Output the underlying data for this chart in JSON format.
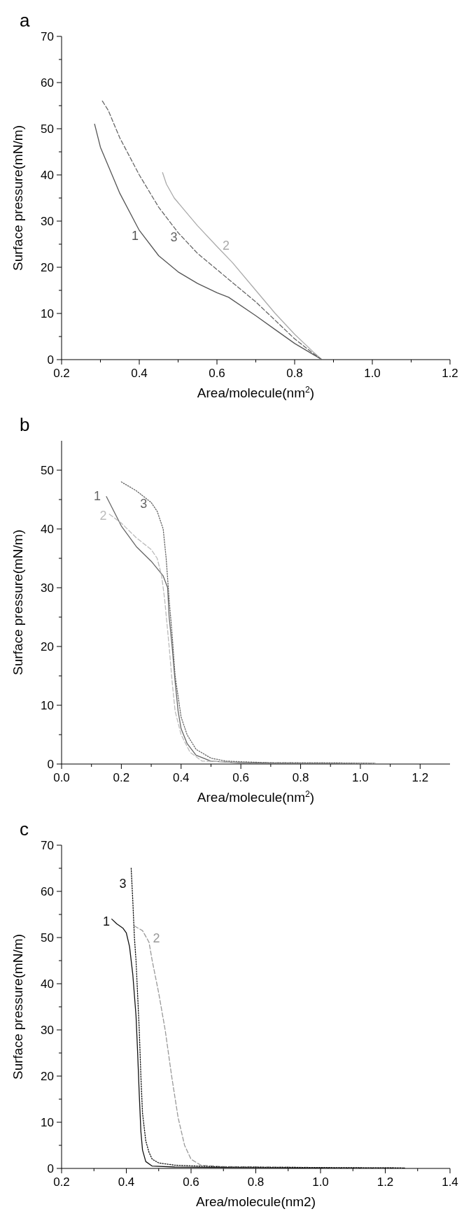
{
  "chart_data": [
    {
      "type": "line",
      "title": "a",
      "xlabel": "Area/molecule(nm$^{2}$)",
      "ylabel": "Surface pressure(mN/m)",
      "xlim": [
        0.2,
        1.2
      ],
      "xticks": [
        0.2,
        {
          "value": 0.3,
          "label": null
        },
        0.4,
        {
          "value": 0.5,
          "label": null
        },
        0.6,
        {
          "value": 0.7,
          "label": null
        },
        0.8,
        {
          "value": 0.9,
          "label": null
        },
        {
          "value": 1,
          "label": "1.0"
        },
        {
          "value": 1.1,
          "label": null
        },
        1.2
      ],
      "ylim": [
        0,
        70
      ],
      "yticks": [
        0,
        {
          "value": 5,
          "label": null
        },
        10,
        {
          "value": 15,
          "label": null
        },
        20,
        {
          "value": 25,
          "label": null
        },
        30,
        {
          "value": 35,
          "label": null
        },
        40,
        {
          "value": 45,
          "label": null
        },
        50,
        {
          "value": 55,
          "label": null
        },
        60,
        {
          "value": 65,
          "label": null
        },
        70
      ],
      "series": [
        {
          "name": "1",
          "color": "#555555",
          "line_style": "solid",
          "x": [
            0.285,
            0.3,
            0.35,
            0.4,
            0.45,
            0.5,
            0.55,
            0.6,
            0.63,
            0.7,
            0.75,
            0.8,
            0.85,
            0.87
          ],
          "values": [
            51,
            46,
            36,
            28,
            22.5,
            19,
            16.5,
            14.5,
            13.5,
            9.5,
            6.5,
            3.5,
            1,
            0
          ]
        },
        {
          "name": "2",
          "color": "#aaaaaa",
          "line_style": "solid",
          "x": [
            0.46,
            0.47,
            0.49,
            0.52,
            0.55,
            0.6,
            0.64,
            0.7,
            0.75,
            0.8,
            0.85,
            0.87
          ],
          "values": [
            40.5,
            38,
            35,
            32,
            29,
            24.5,
            21,
            15,
            10,
            5.5,
            1.5,
            0
          ]
        },
        {
          "name": "3",
          "color": "#666666",
          "line_style": "dashed",
          "x": [
            0.305,
            0.32,
            0.35,
            0.4,
            0.45,
            0.5,
            0.55,
            0.6,
            0.65,
            0.7,
            0.75,
            0.8,
            0.85,
            0.87
          ],
          "values": [
            56,
            54,
            48,
            40,
            33,
            27.5,
            23,
            19.5,
            16,
            12.5,
            8.5,
            4.5,
            1.2,
            0
          ]
        }
      ]
    },
    {
      "type": "line",
      "title": "b",
      "xlabel": "Area/molecule(nm$^{2}$)",
      "ylabel": "Surface pressure(mN/m)",
      "xlim": [
        0,
        1.3
      ],
      "xticks": [
        {
          "value": 0,
          "label": "0.0"
        },
        {
          "value": 0.1,
          "label": null
        },
        0.2,
        {
          "value": 0.3,
          "label": null
        },
        0.4,
        {
          "value": 0.5,
          "label": null
        },
        0.6,
        {
          "value": 0.7,
          "label": null
        },
        0.8,
        {
          "value": 0.9,
          "label": null
        },
        {
          "value": 1,
          "label": "1.0"
        },
        {
          "value": 1.1,
          "label": null
        },
        1.2
      ],
      "ylim": [
        0,
        55
      ],
      "yticks": [
        0,
        {
          "value": 5,
          "label": null
        },
        10,
        {
          "value": 15,
          "label": null
        },
        20,
        {
          "value": 25,
          "label": null
        },
        30,
        {
          "value": 35,
          "label": null
        },
        40,
        {
          "value": 45,
          "label": null
        },
        50
      ],
      "series": [
        {
          "name": "1",
          "color": "#666666",
          "line_style": "solid",
          "x": [
            0.15,
            0.2,
            0.25,
            0.3,
            0.34,
            0.355,
            0.36,
            0.37,
            0.38,
            0.39,
            0.4,
            0.42,
            0.45,
            0.5,
            0.6,
            0.8,
            1.05
          ],
          "values": [
            45.5,
            40.5,
            37,
            34.5,
            32,
            30,
            25,
            20,
            14,
            9,
            6,
            3.5,
            1.5,
            0.5,
            0.2,
            0.1,
            0.1
          ]
        },
        {
          "name": "2",
          "color": "#bbbbbb",
          "line_style": "dashed",
          "x": [
            0.16,
            0.2,
            0.25,
            0.3,
            0.32,
            0.335,
            0.345,
            0.36,
            0.37,
            0.38,
            0.4,
            0.43,
            0.47,
            0.6,
            0.9,
            1.05
          ],
          "values": [
            42.5,
            41,
            38.5,
            36.5,
            35,
            32,
            28,
            20,
            14,
            9,
            5,
            2,
            0.5,
            0.3,
            0.2,
            0.1
          ]
        },
        {
          "name": "3",
          "color": "#666666",
          "line_style": "dotted",
          "x": [
            0.2,
            0.25,
            0.3,
            0.32,
            0.34,
            0.35,
            0.36,
            0.37,
            0.38,
            0.4,
            0.42,
            0.45,
            0.5,
            0.55,
            0.7,
            0.9,
            1.05
          ],
          "values": [
            48,
            46.5,
            44.5,
            43,
            40,
            35,
            28,
            22,
            15,
            8,
            5,
            2.5,
            1,
            0.5,
            0.2,
            0.2,
            0.1
          ]
        }
      ]
    },
    {
      "type": "line",
      "title": "c",
      "xlabel": "Area/molecule(nm2)",
      "ylabel": "Surface pressure(mN/m)",
      "xlim": [
        0.2,
        1.4
      ],
      "xticks": [
        0.2,
        {
          "value": 0.3,
          "label": null
        },
        0.4,
        {
          "value": 0.5,
          "label": null
        },
        0.6,
        {
          "value": 0.7,
          "label": null
        },
        0.8,
        {
          "value": 0.9,
          "label": null
        },
        {
          "value": 1,
          "label": "1.0"
        },
        {
          "value": 1.1,
          "label": null
        },
        1.2,
        {
          "value": 1.3,
          "label": null
        },
        1.4
      ],
      "ylim": [
        0,
        70
      ],
      "yticks": [
        0,
        {
          "value": 5,
          "label": null
        },
        10,
        {
          "value": 15,
          "label": null
        },
        20,
        {
          "value": 25,
          "label": null
        },
        30,
        {
          "value": 35,
          "label": null
        },
        40,
        {
          "value": 45,
          "label": null
        },
        50,
        {
          "value": 55,
          "label": null
        },
        60,
        {
          "value": 65,
          "label": null
        },
        70
      ],
      "series": [
        {
          "name": "1",
          "color": "#111111",
          "line_style": "solid",
          "x": [
            0.355,
            0.37,
            0.39,
            0.4,
            0.41,
            0.42,
            0.43,
            0.435,
            0.44,
            0.445,
            0.45,
            0.46,
            0.48,
            0.55,
            0.7,
            1.0,
            1.26
          ],
          "values": [
            54,
            53,
            52,
            51,
            48,
            42,
            33,
            25,
            16,
            8,
            4,
            1.5,
            0.5,
            0.3,
            0.2,
            0.1,
            0.1
          ]
        },
        {
          "name": "2",
          "color": "#999999",
          "line_style": "dashed",
          "x": [
            0.425,
            0.45,
            0.47,
            0.48,
            0.5,
            0.52,
            0.54,
            0.56,
            0.58,
            0.6,
            0.63,
            0.7,
            1.0,
            1.25
          ],
          "values": [
            52.5,
            51.5,
            49,
            45,
            38,
            30,
            20,
            11,
            5,
            2,
            0.7,
            0.4,
            0.2,
            0.1
          ]
        },
        {
          "name": "3",
          "color": "#111111",
          "line_style": "dotted",
          "x": [
            0.415,
            0.42,
            0.425,
            0.43,
            0.44,
            0.445,
            0.45,
            0.46,
            0.47,
            0.48,
            0.5,
            0.55,
            0.7,
            1.0,
            1.25
          ],
          "values": [
            65,
            58,
            50,
            45,
            30,
            20,
            12,
            6,
            3.5,
            2,
            1.2,
            0.7,
            0.3,
            0.2,
            0.1
          ]
        }
      ]
    }
  ]
}
